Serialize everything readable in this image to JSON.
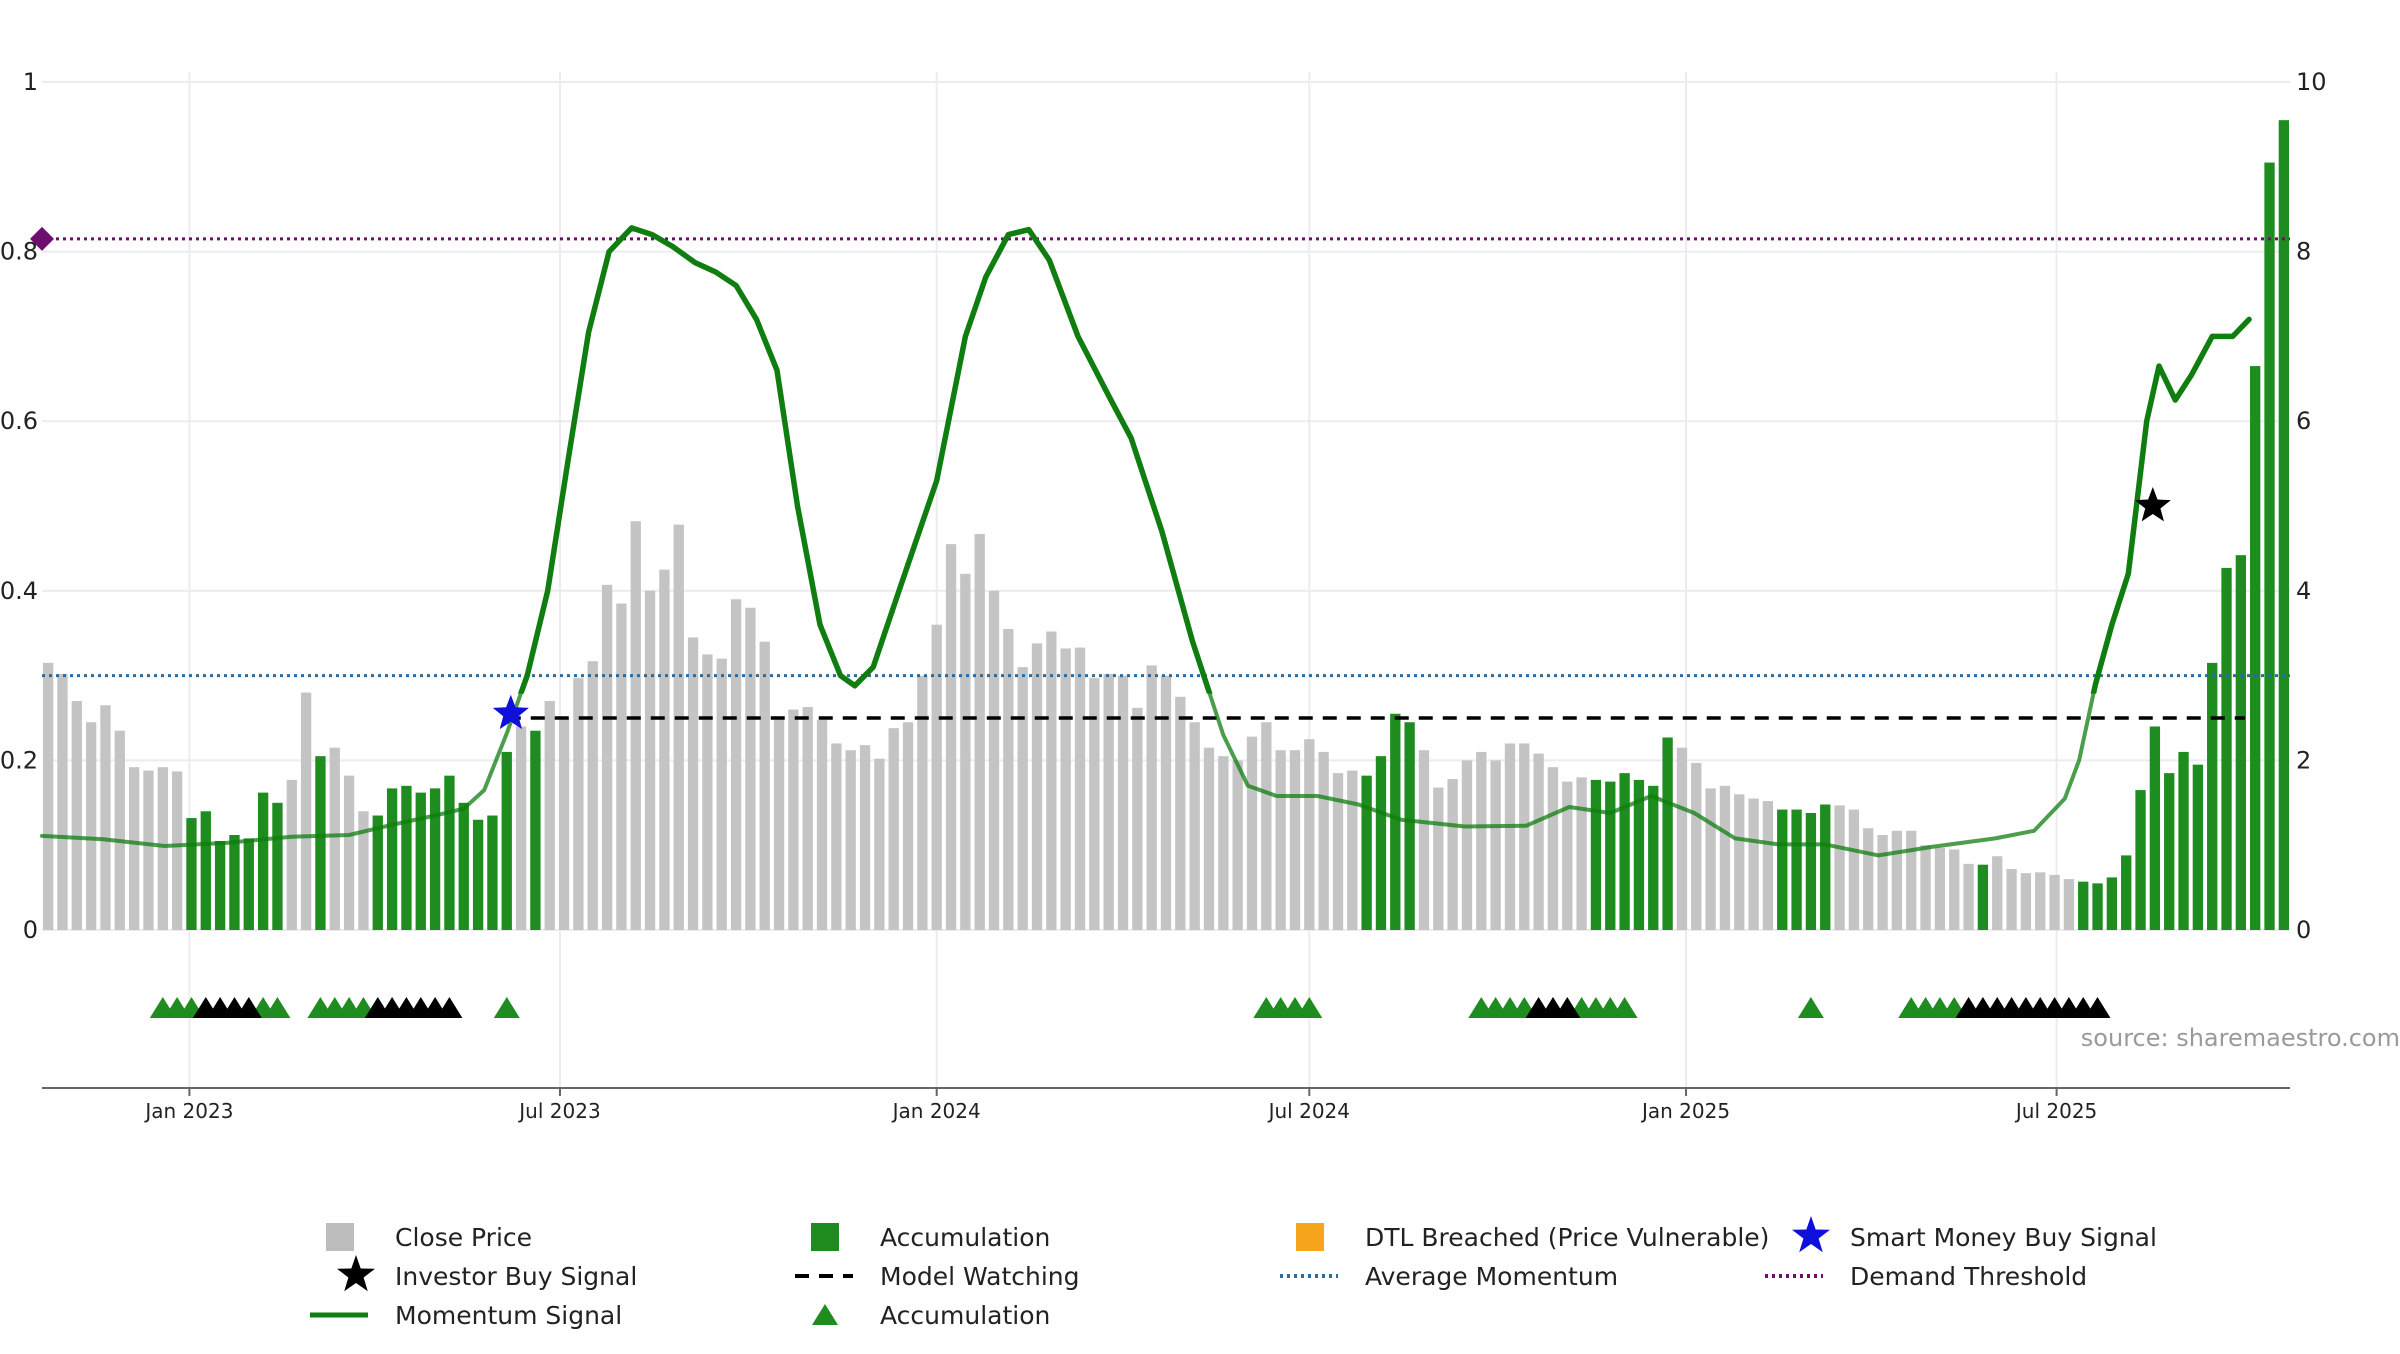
{
  "chart_data": {
    "type": "bar",
    "source_text": "source: sharemaestro.com",
    "y_left": {
      "range": [
        0,
        1
      ],
      "ticks": [
        "0",
        "0.2",
        "0.4",
        "0.6",
        "0.8",
        "1"
      ]
    },
    "y_right": {
      "range": [
        0,
        10
      ],
      "ticks": [
        "0",
        "2",
        "4",
        "6",
        "8",
        "10"
      ]
    },
    "x_axis": {
      "range": [
        "2022-10-21",
        "2025-10-23"
      ],
      "ticks": [
        {
          "date": "2023-01-01",
          "label": "Jan 2023"
        },
        {
          "date": "2023-07-01",
          "label": "Jul 2023"
        },
        {
          "date": "2024-01-01",
          "label": "Jan 2024"
        },
        {
          "date": "2024-07-01",
          "label": "Jul 2024"
        },
        {
          "date": "2025-01-01",
          "label": "Jan 2025"
        },
        {
          "date": "2025-07-01",
          "label": "Jul 2025"
        }
      ]
    },
    "bar_start": "2022-10-24",
    "bar_interval_days": 7,
    "close_price": [
      3.15,
      3.02,
      2.7,
      2.45,
      2.65,
      2.35,
      1.92,
      1.88,
      1.92,
      1.87,
      1.32,
      1.4,
      1.05,
      1.12,
      1.08,
      1.62,
      1.5,
      1.77,
      2.8,
      2.05,
      2.15,
      1.82,
      1.4,
      1.35,
      1.67,
      1.7,
      1.62,
      1.67,
      1.82,
      1.5,
      1.3,
      1.35,
      2.1,
      2.4,
      2.35,
      2.7,
      2.5,
      2.97,
      3.17,
      4.07,
      3.85,
      4.82,
      4.0,
      4.25,
      4.78,
      3.45,
      3.25,
      3.2,
      3.9,
      3.8,
      3.4,
      2.52,
      2.6,
      2.63,
      2.48,
      2.2,
      2.12,
      2.18,
      2.02,
      2.38,
      2.45,
      3.0,
      3.6,
      4.55,
      4.2,
      4.67,
      4.0,
      3.55,
      3.1,
      3.38,
      3.52,
      3.32,
      3.33,
      2.97,
      3.02,
      3.0,
      2.62,
      3.12,
      3.0,
      2.75,
      2.45,
      2.15,
      2.05,
      2.0,
      2.28,
      2.45,
      2.12,
      2.12,
      2.25,
      2.1,
      1.85,
      1.88,
      1.82,
      2.05,
      2.55,
      2.45,
      2.12,
      1.68,
      1.78,
      2.0,
      2.1,
      2.0,
      2.2,
      2.2,
      2.08,
      1.92,
      1.75,
      1.8,
      1.77,
      1.75,
      1.85,
      1.77,
      1.7,
      2.27,
      2.15,
      1.97,
      1.67,
      1.7,
      1.6,
      1.55,
      1.52,
      1.42,
      1.42,
      1.38,
      1.48,
      1.47,
      1.42,
      1.2,
      1.12,
      1.17,
      1.17,
      1.0,
      0.97,
      0.95,
      0.78,
      0.77,
      0.87,
      0.72,
      0.67,
      0.68,
      0.65,
      0.6,
      0.57,
      0.55,
      0.62,
      0.88,
      1.65,
      2.4,
      1.85,
      2.1,
      1.95,
      3.15,
      4.27,
      4.42,
      6.65,
      9.05,
      9.55
    ],
    "bar_state": "GGGGGGGGGGAAAAAAAGGAGGGAAAAAAAAAAGAGGGGGGGGGGGGGGGGGGGGGGGGGGGGGGGGGGGGGGGGGGGGGGGGGGGGGGGGGAAAAGGGGGGGGGGGGAAAAAAGGGGGGGAAAAGGGGGGGGGGAGGGGGGAAAAAAAAAAAAAAAAGGGGGGGGGGBB",
    "momentum_signal": [
      [
        "2022-10-21",
        0.111
      ],
      [
        "2022-11-20",
        0.107
      ],
      [
        "2022-12-20",
        0.099
      ],
      [
        "2023-01-20",
        0.103
      ],
      [
        "2023-02-20",
        0.11
      ],
      [
        "2023-03-20",
        0.112
      ],
      [
        "2023-04-10",
        0.124
      ],
      [
        "2023-05-01",
        0.135
      ],
      [
        "2023-05-15",
        0.143
      ],
      [
        "2023-05-25",
        0.165
      ],
      [
        "2023-06-05",
        0.232
      ],
      [
        "2023-06-15",
        0.3
      ],
      [
        "2023-06-25",
        0.4
      ],
      [
        "2023-07-05",
        0.555
      ],
      [
        "2023-07-15",
        0.705
      ],
      [
        "2023-07-25",
        0.8
      ],
      [
        "2023-08-05",
        0.828
      ],
      [
        "2023-08-15",
        0.82
      ],
      [
        "2023-08-25",
        0.806
      ],
      [
        "2023-09-05",
        0.787
      ],
      [
        "2023-09-15",
        0.776
      ],
      [
        "2023-09-25",
        0.76
      ],
      [
        "2023-10-05",
        0.72
      ],
      [
        "2023-10-15",
        0.66
      ],
      [
        "2023-10-25",
        0.5
      ],
      [
        "2023-11-05",
        0.36
      ],
      [
        "2023-11-15",
        0.3
      ],
      [
        "2023-11-22",
        0.288
      ],
      [
        "2023-12-01",
        0.31
      ],
      [
        "2023-12-15",
        0.41
      ],
      [
        "2024-01-01",
        0.53
      ],
      [
        "2024-01-15",
        0.7
      ],
      [
        "2024-01-25",
        0.77
      ],
      [
        "2024-02-05",
        0.82
      ],
      [
        "2024-02-15",
        0.826
      ],
      [
        "2024-02-25",
        0.79
      ],
      [
        "2024-03-10",
        0.7
      ],
      [
        "2024-03-25",
        0.63
      ],
      [
        "2024-04-05",
        0.58
      ],
      [
        "2024-04-20",
        0.47
      ],
      [
        "2024-05-05",
        0.34
      ],
      [
        "2024-05-20",
        0.23
      ],
      [
        "2024-06-01",
        0.17
      ],
      [
        "2024-06-15",
        0.158
      ],
      [
        "2024-07-05",
        0.158
      ],
      [
        "2024-07-25",
        0.148
      ],
      [
        "2024-08-15",
        0.13
      ],
      [
        "2024-09-15",
        0.122
      ],
      [
        "2024-10-15",
        0.123
      ],
      [
        "2024-11-05",
        0.145
      ],
      [
        "2024-11-25",
        0.138
      ],
      [
        "2024-12-15",
        0.158
      ],
      [
        "2025-01-05",
        0.138
      ],
      [
        "2025-01-25",
        0.108
      ],
      [
        "2025-02-15",
        0.101
      ],
      [
        "2025-03-10",
        0.101
      ],
      [
        "2025-04-05",
        0.088
      ],
      [
        "2025-05-01",
        0.098
      ],
      [
        "2025-06-01",
        0.108
      ],
      [
        "2025-06-20",
        0.117
      ],
      [
        "2025-07-05",
        0.155
      ],
      [
        "2025-07-12",
        0.2
      ],
      [
        "2025-07-20",
        0.29
      ],
      [
        "2025-07-28",
        0.36
      ],
      [
        "2025-08-05",
        0.42
      ],
      [
        "2025-08-14",
        0.6
      ],
      [
        "2025-08-20",
        0.665
      ],
      [
        "2025-08-28",
        0.625
      ],
      [
        "2025-09-05",
        0.655
      ],
      [
        "2025-09-15",
        0.7
      ],
      [
        "2025-09-25",
        0.7
      ],
      [
        "2025-10-03",
        0.72
      ]
    ],
    "average_momentum": 0.3,
    "demand_threshold": 0.815,
    "model_watching": {
      "value": 0.25,
      "from": "2023-06-05",
      "to": "2025-10-01"
    },
    "smart_money_buy_signal": {
      "date": "2023-06-07",
      "value": 0.255
    },
    "investor_buy_signal": {
      "date": "2025-08-17",
      "value": 0.5
    },
    "accumulation_markers": {
      "green": [
        "2022-12-19",
        "2022-12-26",
        "2023-01-02",
        "2023-02-06",
        "2023-02-13",
        "2023-03-06",
        "2023-03-13",
        "2023-03-20",
        "2023-03-27",
        "2023-06-05",
        "2024-06-10",
        "2024-06-17",
        "2024-06-24",
        "2024-07-01",
        "2024-09-23",
        "2024-09-30",
        "2024-10-07",
        "2024-10-14",
        "2024-11-11",
        "2024-11-18",
        "2024-11-25",
        "2024-12-02",
        "2025-03-03",
        "2025-04-21",
        "2025-04-28",
        "2025-05-05",
        "2025-05-12"
      ],
      "black": [
        "2023-01-09",
        "2023-01-16",
        "2023-01-23",
        "2023-01-30",
        "2023-04-03",
        "2023-04-10",
        "2023-04-17",
        "2023-04-24",
        "2023-05-01",
        "2023-05-08",
        "2024-10-21",
        "2024-10-28",
        "2024-11-04",
        "2025-05-19",
        "2025-05-26",
        "2025-06-02",
        "2025-06-09",
        "2025-06-16",
        "2025-06-23",
        "2025-06-30",
        "2025-07-07",
        "2025-07-14",
        "2025-07-21"
      ]
    },
    "colors": {
      "close_price": "#c4c4c4",
      "accumulation": "#1e8c1e",
      "dtl_breached": "#f6a51c",
      "momentum": "#0f7d0f",
      "smart_money": "#1010dd",
      "investor": "#000000",
      "model_watching": "#000000",
      "average_momentum": "#2c6b9e",
      "demand_threshold": "#6e0f6e",
      "grid": "#ececf0"
    },
    "legend": [
      {
        "label": "Close Price",
        "symbol": "square",
        "color": "#bdbdbd"
      },
      {
        "label": "Accumulation",
        "symbol": "square",
        "color": "#1e8c1e"
      },
      {
        "label": "DTL Breached (Price Vulnerable)",
        "symbol": "square",
        "color": "#f6a51c"
      },
      {
        "label": "Smart Money Buy Signal",
        "symbol": "star",
        "color": "#1010dd"
      },
      {
        "label": "Investor Buy Signal",
        "symbol": "star",
        "color": "#000000"
      },
      {
        "label": "Model Watching",
        "symbol": "dash",
        "color": "#000000"
      },
      {
        "label": "Average Momentum",
        "symbol": "dot",
        "color": "#2c6b9e"
      },
      {
        "label": "Demand Threshold",
        "symbol": "dot",
        "color": "#6e0f6e"
      },
      {
        "label": "Momentum Signal",
        "symbol": "line",
        "color": "#0f7d0f"
      },
      {
        "label": "Accumulation",
        "symbol": "triangle",
        "color": "#1e8c1e"
      }
    ]
  }
}
